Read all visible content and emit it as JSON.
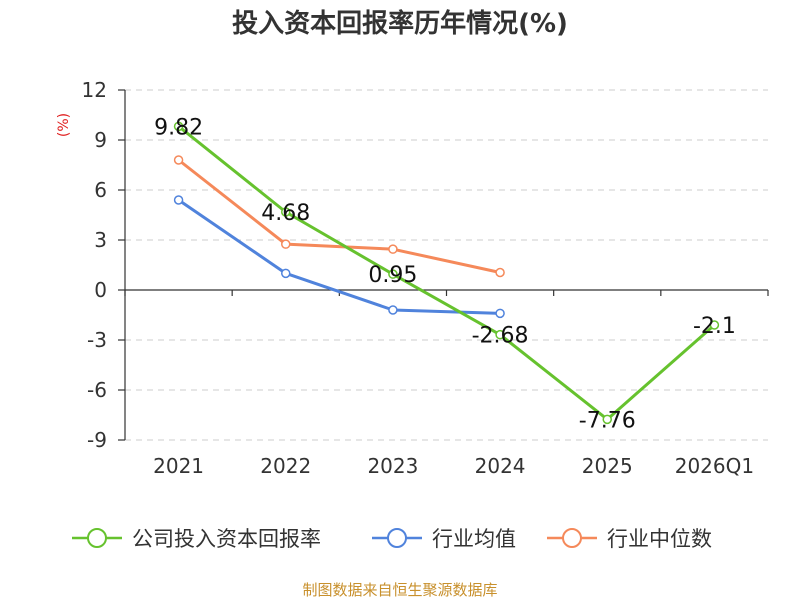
{
  "colors": {
    "company": "#66c22e",
    "industry_avg": "#5083dc",
    "industry_median": "#f5895a",
    "axis": "#333333",
    "grid": "#cccccc",
    "ylabel": "#e02020",
    "source": "#c8902c"
  },
  "source_note": "制图数据来自恒生聚源数据库",
  "chart_data": {
    "type": "line",
    "title": "投入资本回报率历年情况(%)",
    "ylabel": "(%)",
    "xlabel": "",
    "categories": [
      "2021",
      "2022",
      "2023",
      "2024",
      "2025",
      "2026Q1"
    ],
    "ylim": [
      -9,
      12
    ],
    "yticks": [
      12,
      9,
      6,
      3,
      0,
      -3,
      -6,
      -9
    ],
    "grid": true,
    "legend_position": "bottom",
    "series": [
      {
        "name": "公司投入资本回报率",
        "key": "company",
        "values": [
          9.82,
          4.68,
          0.95,
          -2.68,
          -7.76,
          -2.1
        ],
        "labels": [
          "9.82",
          "4.68",
          "0.95",
          "-2.68",
          "-7.76",
          "-2.1"
        ]
      },
      {
        "name": "行业均值",
        "key": "industry_avg",
        "values": [
          5.4,
          1.0,
          -1.2,
          -1.4,
          null,
          null
        ]
      },
      {
        "name": "行业中位数",
        "key": "industry_median",
        "values": [
          7.8,
          2.75,
          2.45,
          1.05,
          null,
          null
        ]
      }
    ]
  }
}
